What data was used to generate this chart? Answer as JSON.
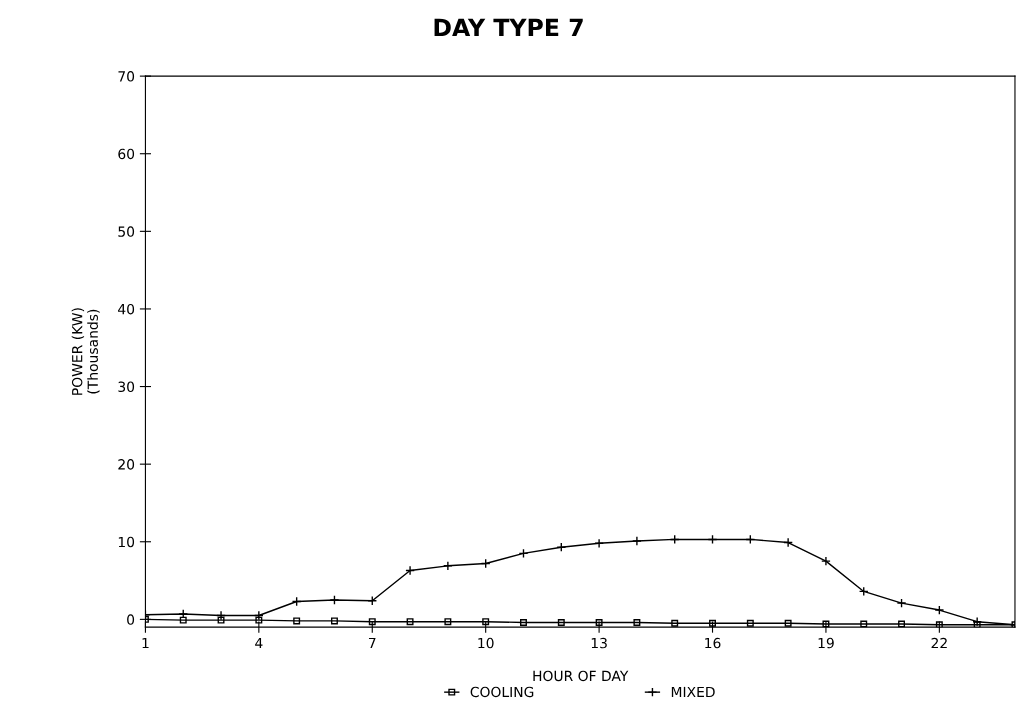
{
  "chart_data": {
    "type": "line",
    "title": "DAY TYPE 7",
    "xlabel": "HOUR OF DAY",
    "ylabel": "POWER (KW)\n(Thousands)",
    "x": [
      1,
      2,
      3,
      4,
      5,
      6,
      7,
      8,
      9,
      10,
      11,
      12,
      13,
      14,
      15,
      16,
      17,
      18,
      19,
      20,
      21,
      22,
      23,
      24
    ],
    "xlim": [
      1,
      24
    ],
    "xticks": [
      1,
      4,
      7,
      10,
      13,
      16,
      19,
      22
    ],
    "ylim": [
      -1,
      70
    ],
    "yticks": [
      0,
      10,
      20,
      30,
      40,
      50,
      60,
      70
    ],
    "grid": false,
    "legend": "bottom",
    "series": [
      {
        "name": "COOLING",
        "color": "#000000",
        "marker": "square",
        "values": [
          0,
          -0.1,
          -0.1,
          -0.1,
          -0.2,
          -0.2,
          -0.3,
          -0.3,
          -0.3,
          -0.3,
          -0.4,
          -0.4,
          -0.4,
          -0.4,
          -0.5,
          -0.5,
          -0.5,
          -0.5,
          -0.6,
          -0.6,
          -0.6,
          -0.7,
          -0.7,
          -0.7
        ]
      },
      {
        "name": "MIXED",
        "color": "#000000",
        "marker": "cross",
        "values": [
          0.6,
          0.7,
          0.5,
          0.5,
          2.3,
          2.5,
          2.4,
          6.3,
          6.9,
          7.2,
          8.5,
          9.3,
          9.8,
          10.1,
          10.3,
          10.3,
          10.3,
          9.9,
          7.5,
          3.6,
          2.1,
          1.2,
          -0.3,
          -0.7
        ]
      }
    ]
  }
}
